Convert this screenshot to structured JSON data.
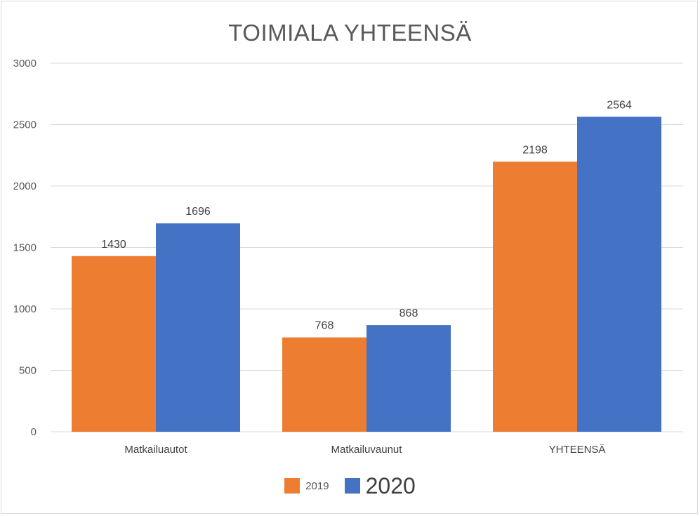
{
  "chart_data": {
    "type": "bar",
    "title": "TOIMIALA YHTEENSÄ",
    "categories": [
      "Matkailuautot",
      "Matkailuvaunut",
      "YHTEENSÄ"
    ],
    "series": [
      {
        "name": "2019",
        "values": [
          1430,
          768,
          2198
        ],
        "color": "#ED7D31"
      },
      {
        "name": "2020",
        "values": [
          1696,
          868,
          2564
        ],
        "color": "#4472C4"
      }
    ],
    "ylim": [
      0,
      3000
    ],
    "yticks": [
      0,
      500,
      1000,
      1500,
      2000,
      2500,
      3000
    ],
    "grid": true,
    "legend_position": "bottom",
    "data_labels": true,
    "xlabel": "",
    "ylabel": ""
  }
}
